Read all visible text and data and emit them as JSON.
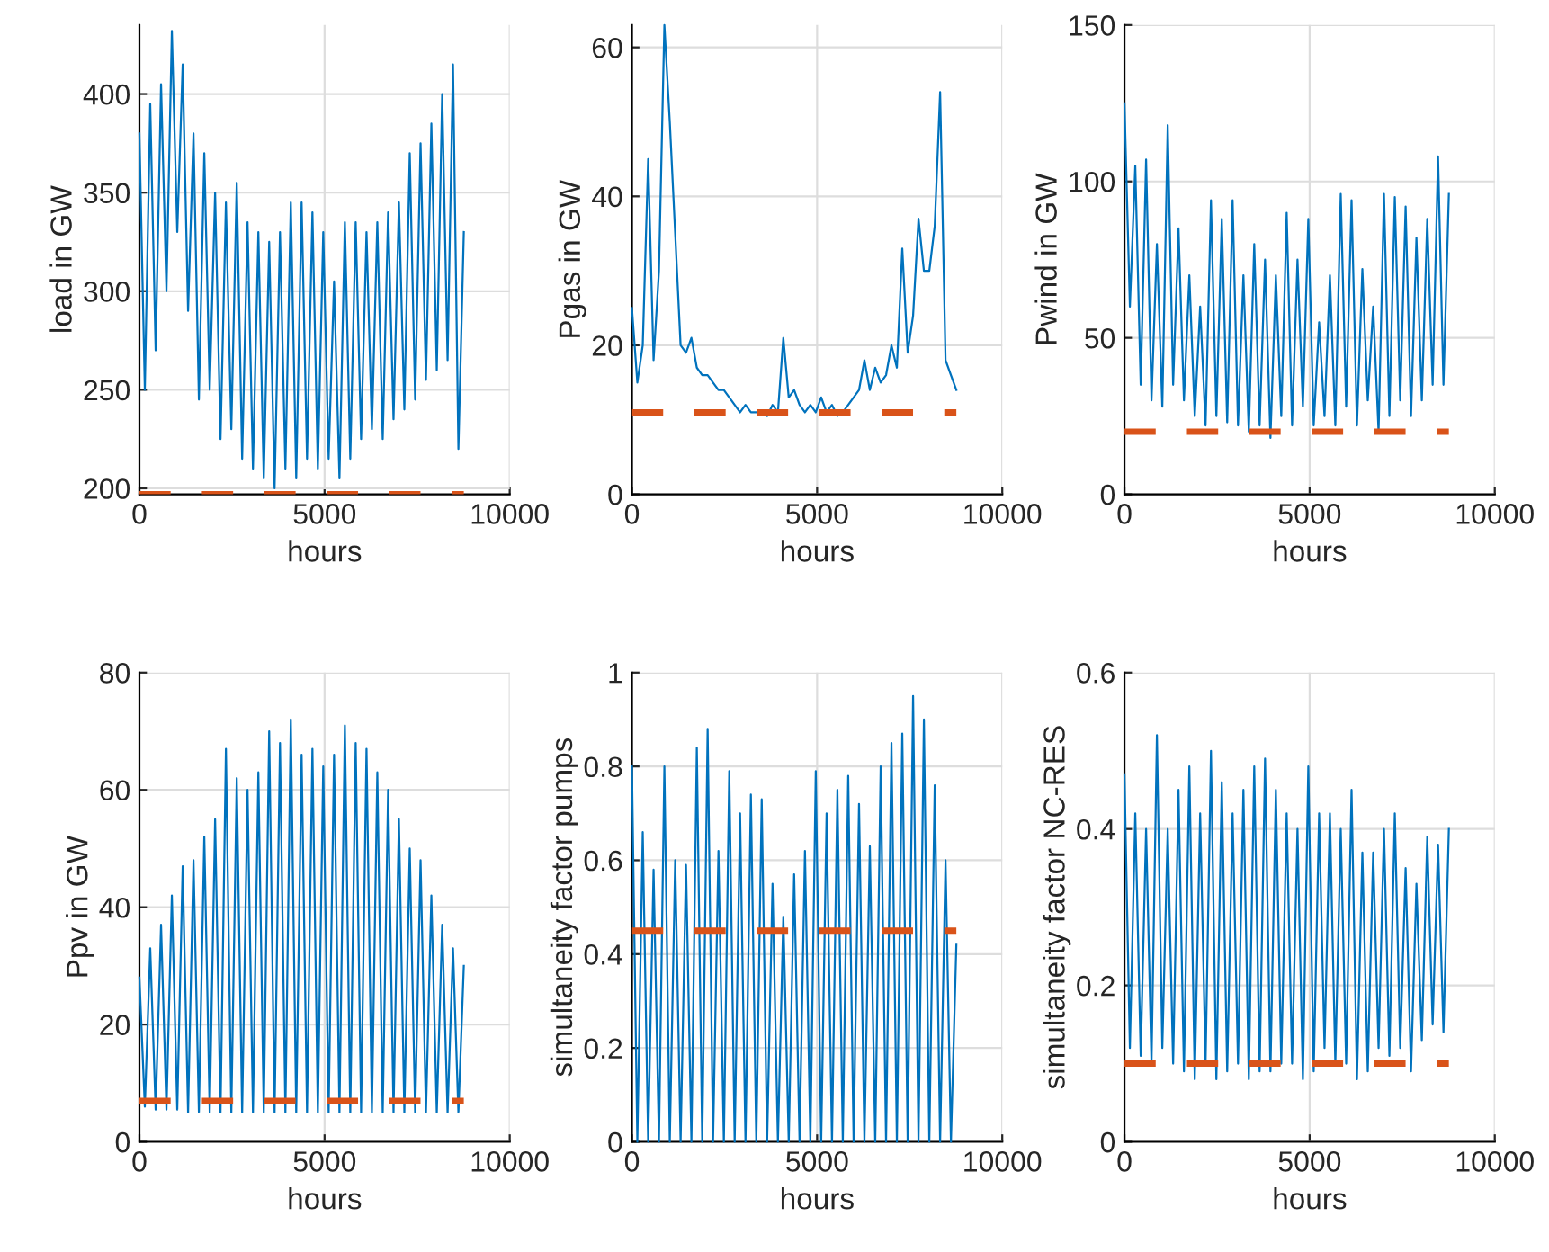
{
  "chart_data": [
    {
      "type": "line",
      "xlabel": "hours",
      "ylabel": "load in GW",
      "xlim": [
        0,
        10000
      ],
      "xticks": [
        0,
        5000,
        10000
      ],
      "ylim": [
        197,
        435
      ],
      "yticks": [
        200,
        250,
        300,
        350,
        400
      ],
      "grid": true,
      "x": [
        0,
        146,
        292,
        438,
        584,
        730,
        876,
        1022,
        1168,
        1314,
        1460,
        1606,
        1752,
        1898,
        2044,
        2190,
        2336,
        2482,
        2628,
        2774,
        2920,
        3066,
        3212,
        3358,
        3504,
        3650,
        3796,
        3942,
        4088,
        4234,
        4380,
        4526,
        4672,
        4818,
        4964,
        5110,
        5256,
        5402,
        5548,
        5694,
        5840,
        5986,
        6132,
        6278,
        6424,
        6570,
        6716,
        6862,
        7008,
        7154,
        7300,
        7446,
        7592,
        7738,
        7884,
        8030,
        8176,
        8322,
        8468,
        8614,
        8760
      ],
      "series": [
        {
          "color": "#0072bd",
          "values": [
            380,
            250,
            395,
            270,
            405,
            300,
            432,
            330,
            415,
            290,
            380,
            245,
            370,
            250,
            350,
            225,
            345,
            230,
            355,
            215,
            335,
            210,
            330,
            205,
            325,
            200,
            330,
            210,
            345,
            205,
            345,
            215,
            340,
            210,
            330,
            215,
            305,
            205,
            335,
            215,
            335,
            225,
            330,
            230,
            335,
            225,
            340,
            235,
            345,
            240,
            370,
            245,
            375,
            255,
            385,
            260,
            400,
            265,
            415,
            220,
            330
          ]
        }
      ],
      "ref_lines": [
        {
          "axis": "y",
          "value": 197,
          "color": "#d95319",
          "line_style": "dashed"
        }
      ]
    },
    {
      "type": "line",
      "xlabel": "hours",
      "ylabel": "Pgas in GW",
      "xlim": [
        0,
        10000
      ],
      "xticks": [
        0,
        5000,
        10000
      ],
      "ylim": [
        0,
        63
      ],
      "yticks": [
        0,
        20,
        40,
        60
      ],
      "grid": true,
      "x": [
        0,
        146,
        292,
        438,
        584,
        730,
        876,
        1022,
        1168,
        1314,
        1460,
        1606,
        1752,
        1898,
        2044,
        2190,
        2336,
        2482,
        2628,
        2774,
        2920,
        3066,
        3212,
        3358,
        3504,
        3650,
        3796,
        3942,
        4088,
        4234,
        4380,
        4526,
        4672,
        4818,
        4964,
        5110,
        5256,
        5402,
        5548,
        5694,
        5840,
        5986,
        6132,
        6278,
        6424,
        6570,
        6716,
        6862,
        7008,
        7154,
        7300,
        7446,
        7592,
        7738,
        7884,
        8030,
        8176,
        8322,
        8468,
        8614,
        8760
      ],
      "series": [
        {
          "color": "#0072bd",
          "values": [
            25,
            15,
            20,
            45,
            18,
            30,
            63,
            50,
            35,
            20,
            19,
            21,
            17,
            16,
            16,
            15,
            14,
            14,
            13,
            12,
            11,
            12,
            11,
            11,
            11,
            10.5,
            12,
            11,
            21,
            13,
            14,
            12,
            11,
            12,
            11,
            13,
            11,
            12,
            10.5,
            11,
            12,
            13,
            14,
            18,
            14,
            17,
            15,
            16,
            20,
            17,
            33,
            19,
            24,
            37,
            30,
            30,
            36,
            54,
            18,
            16,
            14
          ]
        }
      ],
      "ref_lines": [
        {
          "axis": "y",
          "value": 11,
          "color": "#d95319",
          "line_style": "dashed"
        }
      ]
    },
    {
      "type": "line",
      "xlabel": "hours",
      "ylabel": "Pwind in GW",
      "xlim": [
        0,
        10000
      ],
      "xticks": [
        0,
        5000,
        10000
      ],
      "ylim": [
        0,
        150
      ],
      "yticks": [
        0,
        50,
        100,
        150
      ],
      "grid": true,
      "x": [
        0,
        146,
        292,
        438,
        584,
        730,
        876,
        1022,
        1168,
        1314,
        1460,
        1606,
        1752,
        1898,
        2044,
        2190,
        2336,
        2482,
        2628,
        2774,
        2920,
        3066,
        3212,
        3358,
        3504,
        3650,
        3796,
        3942,
        4088,
        4234,
        4380,
        4526,
        4672,
        4818,
        4964,
        5110,
        5256,
        5402,
        5548,
        5694,
        5840,
        5986,
        6132,
        6278,
        6424,
        6570,
        6716,
        6862,
        7008,
        7154,
        7300,
        7446,
        7592,
        7738,
        7884,
        8030,
        8176,
        8322,
        8468,
        8614,
        8760
      ],
      "series": [
        {
          "color": "#0072bd",
          "values": [
            125,
            60,
            105,
            35,
            107,
            30,
            80,
            28,
            118,
            35,
            85,
            30,
            70,
            25,
            60,
            22,
            94,
            25,
            88,
            23,
            94,
            22,
            70,
            20,
            80,
            22,
            75,
            18,
            70,
            25,
            90,
            22,
            75,
            28,
            88,
            22,
            55,
            25,
            70,
            22,
            96,
            28,
            94,
            22,
            72,
            30,
            60,
            20,
            96,
            25,
            95,
            30,
            92,
            25,
            82,
            30,
            88,
            35,
            108,
            35,
            96
          ]
        }
      ],
      "ref_lines": [
        {
          "axis": "y",
          "value": 20,
          "color": "#d95319",
          "line_style": "dashed"
        }
      ]
    },
    {
      "type": "line",
      "xlabel": "hours",
      "ylabel": "Ppv in GW",
      "xlim": [
        0,
        10000
      ],
      "xticks": [
        0,
        5000,
        10000
      ],
      "ylim": [
        0,
        80
      ],
      "yticks": [
        0,
        20,
        40,
        60,
        80
      ],
      "grid": true,
      "x": [
        0,
        146,
        292,
        438,
        584,
        730,
        876,
        1022,
        1168,
        1314,
        1460,
        1606,
        1752,
        1898,
        2044,
        2190,
        2336,
        2482,
        2628,
        2774,
        2920,
        3066,
        3212,
        3358,
        3504,
        3650,
        3796,
        3942,
        4088,
        4234,
        4380,
        4526,
        4672,
        4818,
        4964,
        5110,
        5256,
        5402,
        5548,
        5694,
        5840,
        5986,
        6132,
        6278,
        6424,
        6570,
        6716,
        6862,
        7008,
        7154,
        7300,
        7446,
        7592,
        7738,
        7884,
        8030,
        8176,
        8322,
        8468,
        8614,
        8760
      ],
      "series": [
        {
          "color": "#0072bd",
          "values": [
            28,
            6,
            33,
            5.5,
            37,
            5.5,
            42,
            5.5,
            47,
            5,
            48,
            5,
            52,
            5,
            55,
            5,
            67,
            5,
            62,
            5,
            60,
            5,
            63,
            5,
            70,
            5,
            68,
            5,
            72,
            5,
            66,
            5,
            67,
            5,
            64,
            5,
            66,
            5,
            71,
            5,
            68,
            5,
            67,
            5,
            63,
            5,
            60,
            5,
            55,
            5,
            50,
            5,
            48,
            5,
            42,
            5,
            37,
            5,
            33,
            5,
            30
          ]
        }
      ],
      "ref_lines": [
        {
          "axis": "y",
          "value": 7,
          "color": "#d95319",
          "line_style": "dashed"
        }
      ]
    },
    {
      "type": "line",
      "xlabel": "hours",
      "ylabel": "simultaneity factor pumps",
      "xlim": [
        0,
        10000
      ],
      "xticks": [
        0,
        5000,
        10000
      ],
      "ylim": [
        0,
        1
      ],
      "yticks": [
        0,
        0.2,
        0.4,
        0.6,
        0.8,
        1
      ],
      "grid": true,
      "x": [
        0,
        146,
        292,
        438,
        584,
        730,
        876,
        1022,
        1168,
        1314,
        1460,
        1606,
        1752,
        1898,
        2044,
        2190,
        2336,
        2482,
        2628,
        2774,
        2920,
        3066,
        3212,
        3358,
        3504,
        3650,
        3796,
        3942,
        4088,
        4234,
        4380,
        4526,
        4672,
        4818,
        4964,
        5110,
        5256,
        5402,
        5548,
        5694,
        5840,
        5986,
        6132,
        6278,
        6424,
        6570,
        6716,
        6862,
        7008,
        7154,
        7300,
        7446,
        7592,
        7738,
        7884,
        8030,
        8176,
        8322,
        8468,
        8614,
        8760
      ],
      "series": [
        {
          "color": "#0072bd",
          "values": [
            0.8,
            0,
            0.66,
            0,
            0.58,
            0,
            0.8,
            0,
            0.6,
            0,
            0.59,
            0,
            0.84,
            0,
            0.88,
            0,
            0.62,
            0,
            0.79,
            0,
            0.7,
            0,
            0.74,
            0,
            0.73,
            0,
            0.55,
            0,
            0.48,
            0,
            0.57,
            0,
            0.62,
            0,
            0.79,
            0,
            0.7,
            0,
            0.75,
            0,
            0.78,
            0,
            0.72,
            0,
            0.63,
            0,
            0.8,
            0,
            0.85,
            0,
            0.87,
            0,
            0.95,
            0,
            0.9,
            0,
            0.76,
            0,
            0.6,
            0,
            0.42
          ]
        }
      ],
      "ref_lines": [
        {
          "axis": "y",
          "value": 0.45,
          "color": "#d95319",
          "line_style": "dashed"
        }
      ]
    },
    {
      "type": "line",
      "xlabel": "hours",
      "ylabel": "simultaneity factor NC-RES",
      "xlim": [
        0,
        10000
      ],
      "xticks": [
        0,
        5000,
        10000
      ],
      "ylim": [
        0,
        0.6
      ],
      "yticks": [
        0,
        0.2,
        0.4,
        0.6
      ],
      "grid": true,
      "x": [
        0,
        146,
        292,
        438,
        584,
        730,
        876,
        1022,
        1168,
        1314,
        1460,
        1606,
        1752,
        1898,
        2044,
        2190,
        2336,
        2482,
        2628,
        2774,
        2920,
        3066,
        3212,
        3358,
        3504,
        3650,
        3796,
        3942,
        4088,
        4234,
        4380,
        4526,
        4672,
        4818,
        4964,
        5110,
        5256,
        5402,
        5548,
        5694,
        5840,
        5986,
        6132,
        6278,
        6424,
        6570,
        6716,
        6862,
        7008,
        7154,
        7300,
        7446,
        7592,
        7738,
        7884,
        8030,
        8176,
        8322,
        8468,
        8614,
        8760
      ],
      "series": [
        {
          "color": "#0072bd",
          "values": [
            0.47,
            0.12,
            0.42,
            0.11,
            0.4,
            0.1,
            0.52,
            0.12,
            0.4,
            0.1,
            0.45,
            0.09,
            0.48,
            0.08,
            0.42,
            0.1,
            0.5,
            0.08,
            0.46,
            0.09,
            0.42,
            0.1,
            0.45,
            0.08,
            0.48,
            0.09,
            0.49,
            0.09,
            0.45,
            0.1,
            0.42,
            0.1,
            0.4,
            0.08,
            0.48,
            0.09,
            0.42,
            0.12,
            0.42,
            0.1,
            0.4,
            0.1,
            0.45,
            0.08,
            0.37,
            0.09,
            0.37,
            0.12,
            0.4,
            0.11,
            0.42,
            0.12,
            0.35,
            0.09,
            0.33,
            0.13,
            0.39,
            0.15,
            0.38,
            0.14,
            0.4
          ]
        }
      ],
      "ref_lines": [
        {
          "axis": "y",
          "value": 0.1,
          "color": "#d95319",
          "line_style": "dashed"
        }
      ]
    }
  ]
}
